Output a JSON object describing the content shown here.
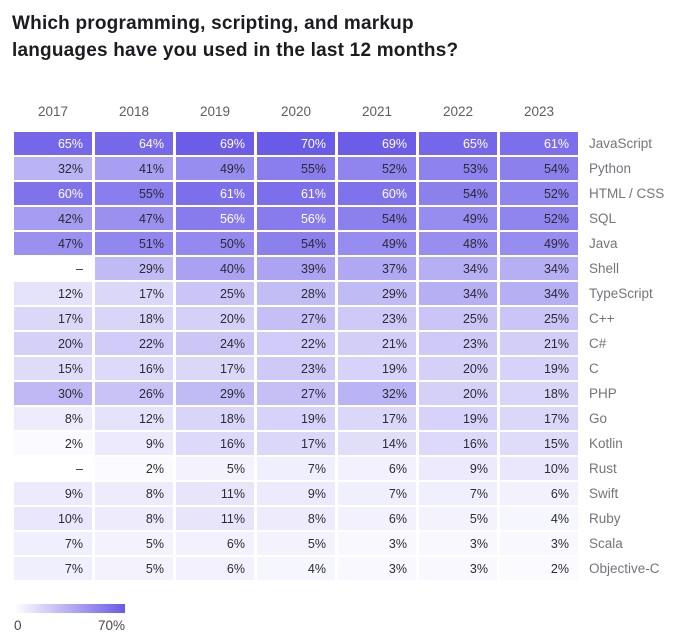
{
  "page": {
    "title_lines": [
      "Which programming, scripting, and markup",
      "languages have you used in the last 12 months?"
    ]
  },
  "chart_data": {
    "type": "heatmap",
    "title": "Which programming, scripting, and markup languages have you used in the last 12 months?",
    "columns": [
      "2017",
      "2018",
      "2019",
      "2020",
      "2021",
      "2022",
      "2023"
    ],
    "rows": [
      {
        "label": "JavaScript",
        "values": [
          65,
          64,
          69,
          70,
          69,
          65,
          61
        ]
      },
      {
        "label": "Python",
        "values": [
          32,
          41,
          49,
          55,
          52,
          53,
          54
        ]
      },
      {
        "label": "HTML / CSS",
        "values": [
          60,
          55,
          61,
          61,
          60,
          54,
          52
        ]
      },
      {
        "label": "SQL",
        "values": [
          42,
          47,
          56,
          56,
          54,
          49,
          52
        ]
      },
      {
        "label": "Java",
        "values": [
          47,
          51,
          50,
          54,
          49,
          48,
          49
        ]
      },
      {
        "label": "Shell",
        "values": [
          null,
          29,
          40,
          39,
          37,
          34,
          34
        ]
      },
      {
        "label": "TypeScript",
        "values": [
          12,
          17,
          25,
          28,
          29,
          34,
          34
        ]
      },
      {
        "label": "C++",
        "values": [
          17,
          18,
          20,
          27,
          23,
          25,
          25
        ]
      },
      {
        "label": "C#",
        "values": [
          20,
          22,
          24,
          22,
          21,
          23,
          21
        ]
      },
      {
        "label": "C",
        "values": [
          15,
          16,
          17,
          23,
          19,
          20,
          19
        ]
      },
      {
        "label": "PHP",
        "values": [
          30,
          26,
          29,
          27,
          32,
          20,
          18
        ]
      },
      {
        "label": "Go",
        "values": [
          8,
          12,
          18,
          19,
          17,
          19,
          17
        ]
      },
      {
        "label": "Kotlin",
        "values": [
          2,
          9,
          16,
          17,
          14,
          16,
          15
        ]
      },
      {
        "label": "Rust",
        "values": [
          null,
          2,
          5,
          7,
          6,
          9,
          10
        ]
      },
      {
        "label": "Swift",
        "values": [
          9,
          8,
          11,
          9,
          7,
          7,
          6
        ]
      },
      {
        "label": "Ruby",
        "values": [
          10,
          8,
          11,
          8,
          6,
          5,
          4
        ]
      },
      {
        "label": "Scala",
        "values": [
          7,
          5,
          6,
          5,
          3,
          3,
          3
        ]
      },
      {
        "label": "Objective-C",
        "values": [
          7,
          5,
          6,
          4,
          3,
          3,
          2
        ]
      }
    ],
    "value_suffix": "%",
    "null_display": "–",
    "scale": {
      "min": 0,
      "max": 70,
      "min_label": "0",
      "max_label": "70%",
      "min_color": "#ffffff",
      "max_color": "#6a5ae8"
    },
    "legend_position": "bottom-left",
    "grid": "off"
  }
}
